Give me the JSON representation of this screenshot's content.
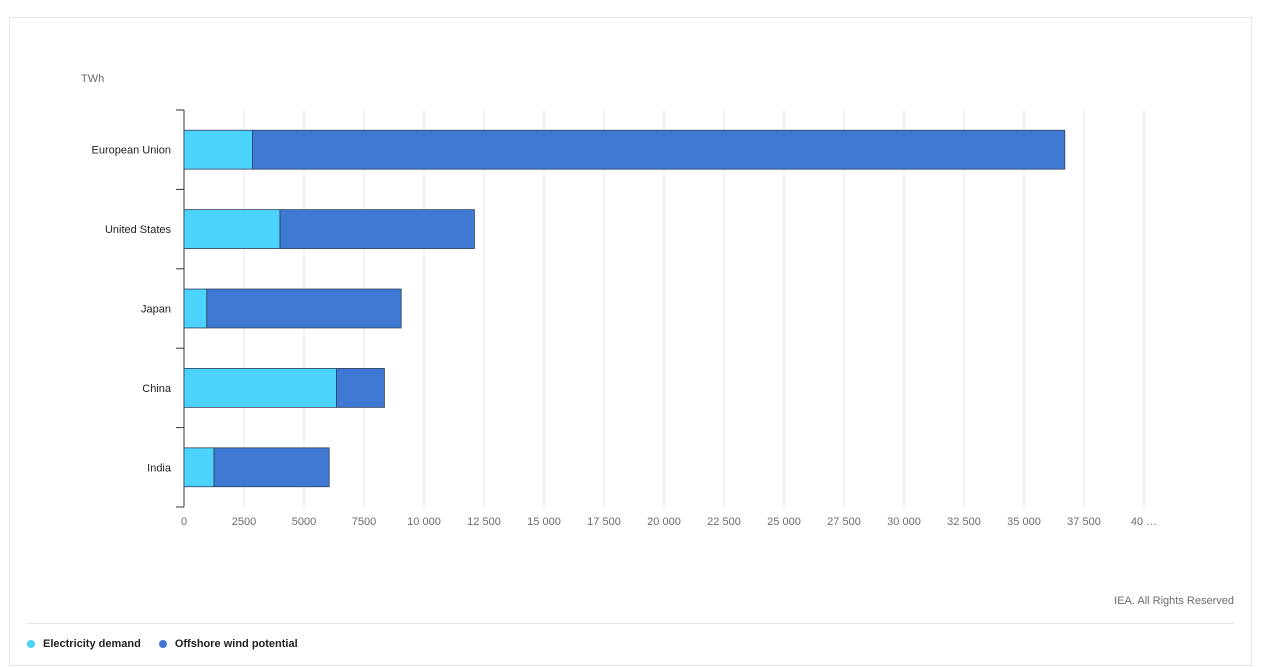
{
  "chart_data": {
    "type": "bar",
    "orientation": "horizontal",
    "stacked": true,
    "unit_label": "TWh",
    "categories": [
      "European Union",
      "United States",
      "Japan",
      "China",
      "India"
    ],
    "series": [
      {
        "name": "Electricity demand",
        "color": "#4cd3fb",
        "values": [
          2850,
          4000,
          950,
          6350,
          1250
        ]
      },
      {
        "name": "Offshore wind potential",
        "color": "#3f79d3",
        "values": [
          33850,
          8100,
          8100,
          2000,
          4800
        ]
      }
    ],
    "xlim": [
      0,
      40000
    ],
    "x_ticks": [
      "0",
      "2500",
      "5000",
      "7500",
      "10 000",
      "12 500",
      "15 000",
      "17 500",
      "20 000",
      "22 500",
      "25 000",
      "27 500",
      "30 000",
      "32 500",
      "35 000",
      "37 500",
      "40 …"
    ],
    "x_tick_values": [
      0,
      2500,
      5000,
      7500,
      10000,
      12500,
      15000,
      17500,
      20000,
      22500,
      25000,
      27500,
      30000,
      32500,
      35000,
      37500,
      40000
    ],
    "grid": true,
    "legend_position": "bottom-left",
    "credit": "IEA. All Rights Reserved"
  }
}
